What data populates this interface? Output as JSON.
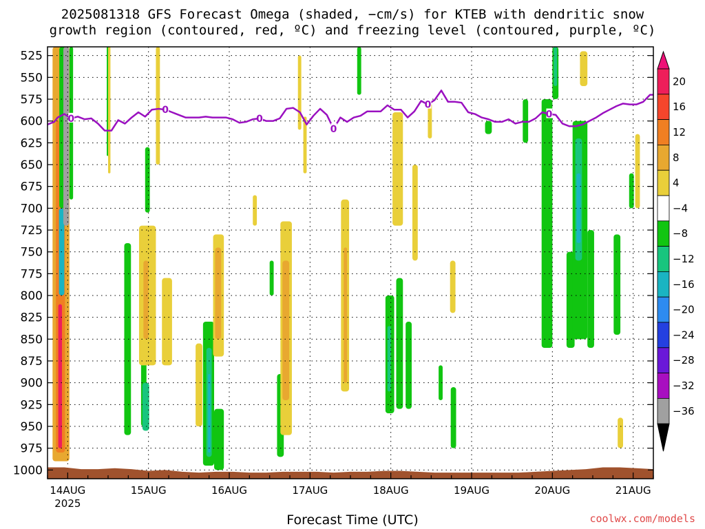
{
  "title_line1": "2025081318 GFS Forecast Omega (shaded, −cm/s) for KTEB with dendritic snow",
  "title_line2": "growth region (contoured, red, ºC) and freezing level (contoured, purple, ºC)",
  "xlabel": "Forecast Time (UTC)",
  "credit": "coolwx.com/models",
  "chart_data": {
    "type": "heatmap",
    "y_axis": {
      "ticks": [
        525,
        550,
        575,
        600,
        625,
        650,
        675,
        700,
        725,
        750,
        775,
        800,
        825,
        850,
        875,
        900,
        925,
        950,
        975,
        1000
      ],
      "unit": "hPa",
      "range": [
        1010,
        515
      ],
      "grid": true
    },
    "x_axis": {
      "ticks": [
        {
          "label": "14AUG",
          "hours": 6,
          "sublabel": "2025"
        },
        {
          "label": "15AUG",
          "hours": 30
        },
        {
          "label": "16AUG",
          "hours": 54
        },
        {
          "label": "17AUG",
          "hours": 78
        },
        {
          "label": "18AUG",
          "hours": 102
        },
        {
          "label": "19AUG",
          "hours": 126
        },
        {
          "label": "20AUG",
          "hours": 150
        },
        {
          "label": "21AUG",
          "hours": 174
        }
      ],
      "range_hours": [
        0,
        180
      ],
      "grid": true
    },
    "colorbar": {
      "labels": [
        "20",
        "16",
        "12",
        "8",
        "4",
        "−4",
        "−8",
        "−12",
        "−16",
        "−20",
        "−24",
        "−28",
        "−32",
        "−36"
      ],
      "colors": [
        "#ee1e5a",
        "#f5462c",
        "#f07f22",
        "#e8a830",
        "#e9cf3a",
        "#ffffff",
        "#11c511",
        "#18c57e",
        "#1ab4c2",
        "#2d8bf0",
        "#2440e0",
        "#6a18d8",
        "#a80fc0",
        "#a0a0a0"
      ],
      "top_color": "#ee1177",
      "bottom_color": "#000000"
    },
    "freezing_level": {
      "color": "#9a10c0",
      "label": "0",
      "points": [
        [
          0,
          604
        ],
        [
          2,
          601
        ],
        [
          3,
          596
        ],
        [
          5,
          592
        ],
        [
          7,
          597
        ],
        [
          9,
          595
        ],
        [
          11,
          598
        ],
        [
          13,
          597
        ],
        [
          15,
          603
        ],
        [
          17,
          611
        ],
        [
          19,
          611
        ],
        [
          21,
          599
        ],
        [
          23,
          603
        ],
        [
          25,
          596
        ],
        [
          27,
          590
        ],
        [
          29,
          595
        ],
        [
          31,
          587
        ],
        [
          33,
          586
        ],
        [
          35,
          587
        ],
        [
          37,
          590
        ],
        [
          39,
          593
        ],
        [
          41,
          596
        ],
        [
          43,
          596
        ],
        [
          45,
          596
        ],
        [
          47,
          595
        ],
        [
          49,
          596
        ],
        [
          51,
          596
        ],
        [
          53,
          596
        ],
        [
          55,
          598
        ],
        [
          57,
          602
        ],
        [
          59,
          601
        ],
        [
          61,
          598
        ],
        [
          63,
          597
        ],
        [
          65,
          600
        ],
        [
          67,
          600
        ],
        [
          69,
          597
        ],
        [
          71,
          586
        ],
        [
          73,
          585
        ],
        [
          75,
          590
        ],
        [
          77,
          604
        ],
        [
          79,
          594
        ],
        [
          81,
          586
        ],
        [
          83,
          593
        ],
        [
          85,
          609
        ],
        [
          87,
          596
        ],
        [
          89,
          601
        ],
        [
          91,
          596
        ],
        [
          93,
          594
        ],
        [
          95,
          589
        ],
        [
          97,
          589
        ],
        [
          99,
          589
        ],
        [
          101,
          582
        ],
        [
          103,
          587
        ],
        [
          105,
          587
        ],
        [
          107,
          596
        ],
        [
          109,
          589
        ],
        [
          111,
          577
        ],
        [
          113,
          581
        ],
        [
          115,
          576
        ],
        [
          117,
          565
        ],
        [
          119,
          578
        ],
        [
          121,
          578
        ],
        [
          123,
          579
        ],
        [
          125,
          590
        ],
        [
          127,
          592
        ],
        [
          129,
          596
        ],
        [
          131,
          598
        ],
        [
          133,
          601
        ],
        [
          135,
          601
        ],
        [
          137,
          598
        ],
        [
          139,
          603
        ],
        [
          141,
          601
        ],
        [
          143,
          601
        ],
        [
          145,
          597
        ],
        [
          147,
          590
        ],
        [
          149,
          592
        ],
        [
          151,
          593
        ],
        [
          153,
          603
        ],
        [
          155,
          606
        ],
        [
          157,
          606
        ],
        [
          159,
          604
        ],
        [
          161,
          600
        ],
        [
          163,
          596
        ],
        [
          165,
          591
        ],
        [
          167,
          587
        ],
        [
          169,
          583
        ],
        [
          171,
          580
        ],
        [
          173,
          581
        ],
        [
          175,
          581
        ],
        [
          177,
          578
        ],
        [
          179,
          570
        ],
        [
          180,
          570
        ]
      ]
    },
    "shaded_regions": [
      {
        "h": [
          1.5,
          6.5
        ],
        "p": [
          515,
          990
        ],
        "v": 8
      },
      {
        "h": [
          2.5,
          5.2
        ],
        "p": [
          600,
          980
        ],
        "v": 12
      },
      {
        "h": [
          3.2,
          4.3
        ],
        "p": [
          810,
          975
        ],
        "v": 20
      },
      {
        "h": [
          3.5,
          5.6
        ],
        "p": [
          515,
          700
        ],
        "v": -8
      },
      {
        "h": [
          3.4,
          5.0
        ],
        "p": [
          700,
          800
        ],
        "v": -16
      },
      {
        "h": [
          4.7,
          6.4
        ],
        "p": [
          515,
          720
        ],
        "v": -36
      },
      {
        "h": [
          6.5,
          7.6
        ],
        "p": [
          515,
          690
        ],
        "v": -8
      },
      {
        "h": [
          17.6,
          18.2
        ],
        "p": [
          515,
          640
        ],
        "v": -8
      },
      {
        "h": [
          18.0,
          18.7
        ],
        "p": [
          515,
          660
        ],
        "v": 4
      },
      {
        "h": [
          22.8,
          24.8
        ],
        "p": [
          740,
          960
        ],
        "v": -8
      },
      {
        "h": [
          27.8,
          29.4
        ],
        "p": [
          755,
          950
        ],
        "v": -8
      },
      {
        "h": [
          28.2,
          30.2
        ],
        "p": [
          900,
          955
        ],
        "v": -12
      },
      {
        "h": [
          27.2,
          32.2
        ],
        "p": [
          720,
          880
        ],
        "v": 4
      },
      {
        "h": [
          28.5,
          30.0
        ],
        "p": [
          760,
          850
        ],
        "v": 8
      },
      {
        "h": [
          29.0,
          30.4
        ],
        "p": [
          630,
          705
        ],
        "v": -8
      },
      {
        "h": [
          32.2,
          33.4
        ],
        "p": [
          515,
          650
        ],
        "v": 4
      },
      {
        "h": [
          34.0,
          37.0
        ],
        "p": [
          780,
          880
        ],
        "v": 4
      },
      {
        "h": [
          46.2,
          49.5
        ],
        "p": [
          830,
          995
        ],
        "v": -8
      },
      {
        "h": [
          47.2,
          48.8
        ],
        "p": [
          860,
          985
        ],
        "v": -12
      },
      {
        "h": [
          47.7,
          48.4
        ],
        "p": [
          890,
          980
        ],
        "v": -16
      },
      {
        "h": [
          49.5,
          52.4
        ],
        "p": [
          930,
          1000
        ],
        "v": -8
      },
      {
        "h": [
          44.0,
          46.0
        ],
        "p": [
          855,
          950
        ],
        "v": 4
      },
      {
        "h": [
          49.2,
          52.4
        ],
        "p": [
          730,
          870
        ],
        "v": 4
      },
      {
        "h": [
          49.8,
          51.6
        ],
        "p": [
          745,
          850
        ],
        "v": 8
      },
      {
        "h": [
          61.0,
          62.2
        ],
        "p": [
          685,
          720
        ],
        "v": 4
      },
      {
        "h": [
          66.0,
          67.2
        ],
        "p": [
          760,
          800
        ],
        "v": -8
      },
      {
        "h": [
          68.2,
          70.2
        ],
        "p": [
          890,
          985
        ],
        "v": -8
      },
      {
        "h": [
          69.2,
          72.6
        ],
        "p": [
          715,
          960
        ],
        "v": 4
      },
      {
        "h": [
          69.8,
          71.8
        ],
        "p": [
          760,
          920
        ],
        "v": 8
      },
      {
        "h": [
          74.4,
          75.4
        ],
        "p": [
          525,
          610
        ],
        "v": 4
      },
      {
        "h": [
          76.0,
          77.0
        ],
        "p": [
          595,
          660
        ],
        "v": 4
      },
      {
        "h": [
          87.2,
          89.6
        ],
        "p": [
          690,
          910
        ],
        "v": 4
      },
      {
        "h": [
          88.0,
          89.0
        ],
        "p": [
          745,
          900
        ],
        "v": 8
      },
      {
        "h": [
          92.0,
          93.2
        ],
        "p": [
          515,
          570
        ],
        "v": -8
      },
      {
        "h": [
          100.4,
          103.0
        ],
        "p": [
          800,
          935
        ],
        "v": -8
      },
      {
        "h": [
          101.0,
          102.0
        ],
        "p": [
          835,
          910
        ],
        "v": -12
      },
      {
        "h": [
          102.5,
          105.6
        ],
        "p": [
          590,
          720
        ],
        "v": 4
      },
      {
        "h": [
          103.6,
          105.6
        ],
        "p": [
          780,
          930
        ],
        "v": -8
      },
      {
        "h": [
          106.4,
          108.2
        ],
        "p": [
          830,
          930
        ],
        "v": -8
      },
      {
        "h": [
          108.4,
          110.0
        ],
        "p": [
          650,
          760
        ],
        "v": 4
      },
      {
        "h": [
          113.0,
          114.2
        ],
        "p": [
          580,
          620
        ],
        "v": 4
      },
      {
        "h": [
          116.2,
          117.4
        ],
        "p": [
          880,
          920
        ],
        "v": -8
      },
      {
        "h": [
          119.8,
          121.4
        ],
        "p": [
          905,
          975
        ],
        "v": -8
      },
      {
        "h": [
          119.6,
          121.2
        ],
        "p": [
          760,
          820
        ],
        "v": 4
      },
      {
        "h": [
          130.0,
          132.0
        ],
        "p": [
          600,
          615
        ],
        "v": -8
      },
      {
        "h": [
          141.2,
          142.8
        ],
        "p": [
          575,
          625
        ],
        "v": -8
      },
      {
        "h": [
          146.8,
          150.0
        ],
        "p": [
          575,
          860
        ],
        "v": -8
      },
      {
        "h": [
          150.0,
          151.8
        ],
        "p": [
          515,
          575
        ],
        "v": -8
      },
      {
        "h": [
          150.4,
          151.4
        ],
        "p": [
          515,
          560
        ],
        "v": -12
      },
      {
        "h": [
          154.2,
          156.6
        ],
        "p": [
          750,
          860
        ],
        "v": -8
      },
      {
        "h": [
          156.0,
          160.4
        ],
        "p": [
          600,
          850
        ],
        "v": -8
      },
      {
        "h": [
          156.8,
          158.8
        ],
        "p": [
          620,
          760
        ],
        "v": -12
      },
      {
        "h": [
          157.2,
          158.4
        ],
        "p": [
          660,
          740
        ],
        "v": -16
      },
      {
        "h": [
          158.2,
          160.4
        ],
        "p": [
          520,
          560
        ],
        "v": 4
      },
      {
        "h": [
          160.4,
          162.4
        ],
        "p": [
          725,
          860
        ],
        "v": -8
      },
      {
        "h": [
          168.2,
          170.2
        ],
        "p": [
          730,
          845
        ],
        "v": -8
      },
      {
        "h": [
          172.8,
          174.2
        ],
        "p": [
          660,
          700
        ],
        "v": -8
      },
      {
        "h": [
          174.6,
          176.0
        ],
        "p": [
          615,
          700
        ],
        "v": 4
      },
      {
        "h": [
          169.4,
          171.0
        ],
        "p": [
          940,
          975
        ],
        "v": 4
      }
    ],
    "terrain": {
      "color": "#a0522d",
      "points": [
        [
          0,
          997
        ],
        [
          5,
          997
        ],
        [
          10,
          999
        ],
        [
          15,
          999
        ],
        [
          20,
          998
        ],
        [
          25,
          999
        ],
        [
          30,
          1001
        ],
        [
          35,
          1000
        ],
        [
          40,
          1002
        ],
        [
          45,
          1003
        ],
        [
          50,
          1002
        ],
        [
          55,
          1002
        ],
        [
          60,
          1003
        ],
        [
          65,
          1003
        ],
        [
          70,
          1002
        ],
        [
          75,
          1002
        ],
        [
          80,
          1002
        ],
        [
          85,
          1003
        ],
        [
          90,
          1002
        ],
        [
          95,
          1002
        ],
        [
          100,
          1001
        ],
        [
          105,
          1001
        ],
        [
          110,
          1002
        ],
        [
          115,
          1003
        ],
        [
          120,
          1003
        ],
        [
          125,
          1003
        ],
        [
          130,
          1003
        ],
        [
          135,
          1003
        ],
        [
          140,
          1003
        ],
        [
          145,
          1002
        ],
        [
          150,
          1001
        ],
        [
          155,
          1000
        ],
        [
          160,
          999
        ],
        [
          165,
          997
        ],
        [
          170,
          997
        ],
        [
          175,
          998
        ],
        [
          180,
          999
        ]
      ]
    }
  }
}
